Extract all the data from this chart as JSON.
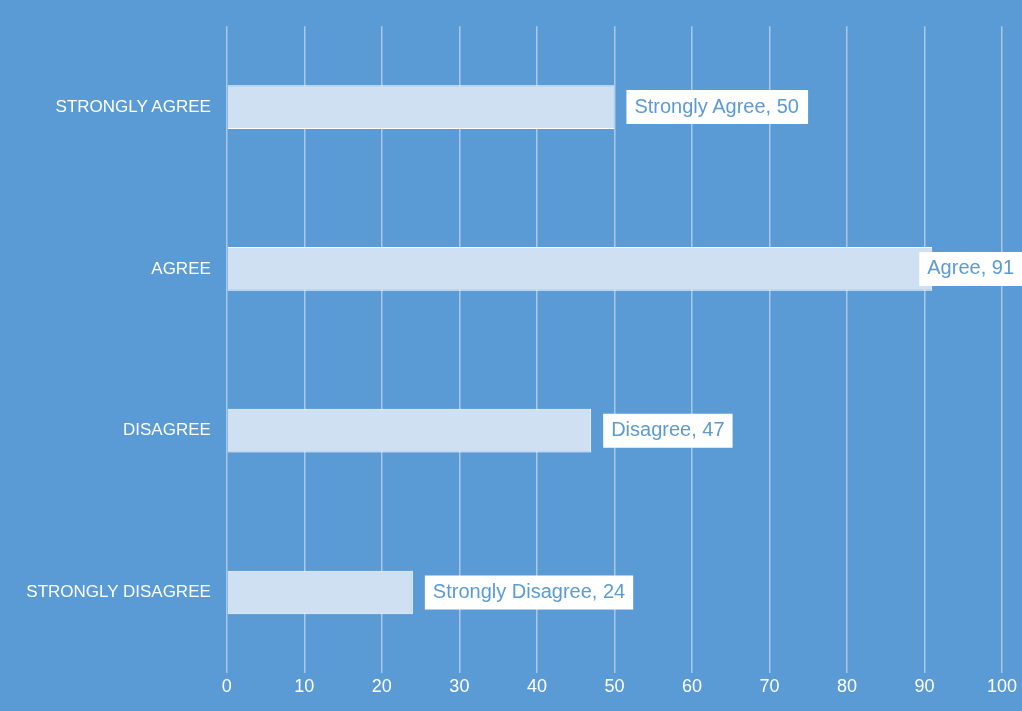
{
  "chart_data": {
    "type": "bar",
    "orientation": "horizontal",
    "categories": [
      "STRONGLY AGREE",
      "AGREE",
      "DISAGREE",
      "STRONGLY DISAGREE"
    ],
    "values": [
      50,
      91,
      47,
      24
    ],
    "color": "#cfe0f2",
    "value_labels": [
      "Strongly Agree, 50",
      "Agree, 91",
      "Disagree, 47",
      "Strongly Disagree, 24"
    ],
    "xlim": [
      0,
      100
    ],
    "xticks": [
      0,
      10,
      20,
      30,
      40,
      50,
      60,
      70,
      80,
      90,
      100
    ],
    "grid": "x",
    "legend": false
  }
}
